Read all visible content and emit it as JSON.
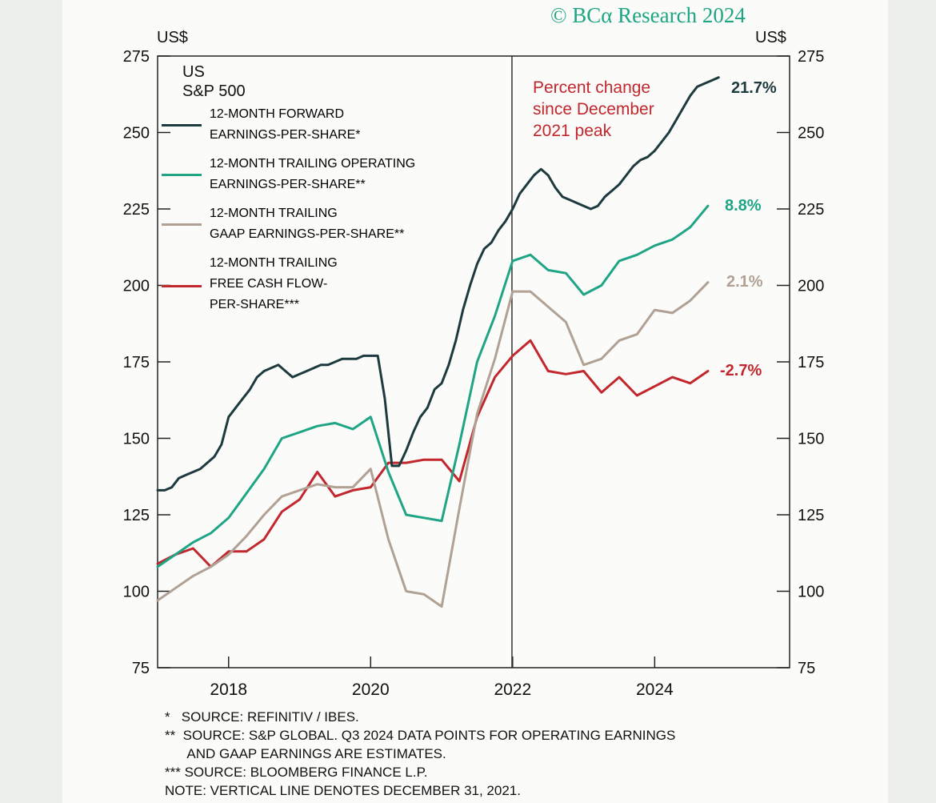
{
  "copyright": "© BCα Research 2024",
  "left_unit": "US$",
  "right_unit": "US$",
  "legend": {
    "title_line1": "US",
    "title_line2": "S&P 500",
    "items": [
      {
        "line1": "12-MONTH FORWARD",
        "line2": "EARNINGS-PER-SHARE*",
        "line3": "",
        "color": "#1d3a3f"
      },
      {
        "line1": "12-MONTH TRAILING OPERATING",
        "line2": "EARNINGS-PER-SHARE**",
        "line3": "",
        "color": "#1fa585"
      },
      {
        "line1": "12-MONTH TRAILING",
        "line2": "GAAP EARNINGS-PER-SHARE**",
        "line3": "",
        "color": "#b1a194"
      },
      {
        "line1": "12-MONTH TRAILING",
        "line2": "FREE CASH FLOW-",
        "line3": "PER-SHARE***",
        "color": "#c1272d"
      }
    ]
  },
  "annotation": {
    "line1": "Percent change",
    "line2": "since December",
    "line3": "2021 peak"
  },
  "end_labels": [
    {
      "text": "21.7%",
      "color": "#1d3a3f"
    },
    {
      "text": "8.8%",
      "color": "#1fa585"
    },
    {
      "text": "2.1%",
      "color": "#b1a194"
    },
    {
      "text": "-2.7%",
      "color": "#c1272d"
    }
  ],
  "footnotes": [
    "*   SOURCE: REFINITIV / IBES.",
    "**  SOURCE: S&P GLOBAL. Q3 2024 DATA POINTS FOR OPERATING EARNINGS",
    "      AND GAAP EARNINGS ARE ESTIMATES.",
    "*** SOURCE: BLOOMBERG FINANCE L.P.",
    "NOTE: VERTICAL LINE DENOTES DECEMBER 31, 2021."
  ],
  "chart_data": {
    "type": "line",
    "title": "US S&P 500 earnings-per-share measures",
    "ylabel_left": "US$",
    "ylabel_right": "US$",
    "xlim": [
      2017.0,
      2025.9
    ],
    "ylim": [
      75,
      275
    ],
    "x_ticks": [
      2018,
      2020,
      2022,
      2024
    ],
    "y_ticks": [
      75,
      100,
      125,
      150,
      175,
      200,
      225,
      250,
      275
    ],
    "vertical_line_x": 2021.99,
    "series": [
      {
        "name": "12-Month Forward Earnings-Per-Share",
        "color": "#1d3a3f",
        "x": [
          2017.0,
          2017.1,
          2017.2,
          2017.3,
          2017.4,
          2017.5,
          2017.6,
          2017.7,
          2017.8,
          2017.9,
          2018.0,
          2018.1,
          2018.2,
          2018.3,
          2018.4,
          2018.5,
          2018.6,
          2018.7,
          2018.8,
          2018.9,
          2019.0,
          2019.1,
          2019.2,
          2019.3,
          2019.4,
          2019.5,
          2019.6,
          2019.7,
          2019.8,
          2019.9,
          2020.0,
          2020.1,
          2020.2,
          2020.3,
          2020.4,
          2020.5,
          2020.6,
          2020.7,
          2020.8,
          2020.9,
          2021.0,
          2021.1,
          2021.2,
          2021.3,
          2021.4,
          2021.5,
          2021.6,
          2021.7,
          2021.8,
          2021.9,
          2022.0,
          2022.1,
          2022.2,
          2022.3,
          2022.4,
          2022.5,
          2022.6,
          2022.7,
          2022.8,
          2022.9,
          2023.0,
          2023.1,
          2023.2,
          2023.3,
          2023.4,
          2023.5,
          2023.6,
          2023.7,
          2023.8,
          2023.9,
          2024.0,
          2024.1,
          2024.2,
          2024.3,
          2024.4,
          2024.5,
          2024.6,
          2024.7,
          2024.8,
          2024.9
        ],
        "y": [
          133,
          133,
          134,
          137,
          138,
          139,
          140,
          142,
          144,
          148,
          157,
          160,
          163,
          166,
          170,
          172,
          173,
          174,
          172,
          170,
          171,
          172,
          173,
          174,
          174,
          175,
          176,
          176,
          176,
          177,
          177,
          177,
          163,
          141,
          141,
          146,
          152,
          157,
          160,
          166,
          168,
          174,
          182,
          192,
          200,
          207,
          212,
          214,
          218,
          221,
          225,
          230,
          233,
          236,
          238,
          236,
          232,
          229,
          228,
          227,
          226,
          225,
          226,
          229,
          231,
          233,
          236,
          239,
          241,
          242,
          244,
          247,
          250,
          254,
          258,
          262,
          265,
          266,
          267,
          268
        ]
      },
      {
        "name": "12-Month Trailing Operating Earnings-Per-Share",
        "color": "#1fa585",
        "x": [
          2017.0,
          2017.25,
          2017.5,
          2017.75,
          2018.0,
          2018.25,
          2018.5,
          2018.75,
          2019.0,
          2019.25,
          2019.5,
          2019.75,
          2020.0,
          2020.25,
          2020.5,
          2020.75,
          2021.0,
          2021.25,
          2021.5,
          2021.75,
          2022.0,
          2022.25,
          2022.5,
          2022.75,
          2023.0,
          2023.25,
          2023.5,
          2023.75,
          2024.0,
          2024.25,
          2024.5,
          2024.75
        ],
        "y": [
          108,
          112,
          116,
          119,
          124,
          132,
          140,
          150,
          152,
          154,
          155,
          153,
          157,
          139,
          125,
          124,
          123,
          148,
          175,
          190,
          208,
          210,
          205,
          204,
          197,
          200,
          208,
          210,
          213,
          215,
          219,
          226
        ]
      },
      {
        "name": "12-Month Trailing GAAP Earnings-Per-Share",
        "color": "#b1a194",
        "x": [
          2017.0,
          2017.25,
          2017.5,
          2017.75,
          2018.0,
          2018.25,
          2018.5,
          2018.75,
          2019.0,
          2019.25,
          2019.5,
          2019.75,
          2020.0,
          2020.25,
          2020.5,
          2020.75,
          2021.0,
          2021.25,
          2021.5,
          2021.75,
          2022.0,
          2022.25,
          2022.5,
          2022.75,
          2023.0,
          2023.25,
          2023.5,
          2023.75,
          2024.0,
          2024.25,
          2024.5,
          2024.75
        ],
        "y": [
          97,
          101,
          105,
          108,
          112,
          118,
          125,
          131,
          133,
          135,
          134,
          134,
          140,
          117,
          100,
          99,
          95,
          127,
          158,
          176,
          198,
          198,
          193,
          188,
          174,
          176,
          182,
          184,
          192,
          191,
          195,
          201
        ]
      },
      {
        "name": "12-Month Trailing Free Cash Flow-Per-Share",
        "color": "#c1272d",
        "x": [
          2017.0,
          2017.25,
          2017.5,
          2017.75,
          2018.0,
          2018.25,
          2018.5,
          2018.75,
          2019.0,
          2019.25,
          2019.5,
          2019.75,
          2020.0,
          2020.25,
          2020.5,
          2020.75,
          2021.0,
          2021.25,
          2021.5,
          2021.75,
          2022.0,
          2022.25,
          2022.5,
          2022.75,
          2023.0,
          2023.25,
          2023.5,
          2023.75,
          2024.0,
          2024.25,
          2024.5,
          2024.75
        ],
        "y": [
          109,
          112,
          114,
          108,
          113,
          113,
          117,
          126,
          130,
          139,
          131,
          133,
          134,
          142,
          142,
          143,
          143,
          136,
          157,
          170,
          177,
          182,
          172,
          171,
          172,
          165,
          170,
          164,
          167,
          170,
          168,
          172
        ]
      }
    ]
  }
}
